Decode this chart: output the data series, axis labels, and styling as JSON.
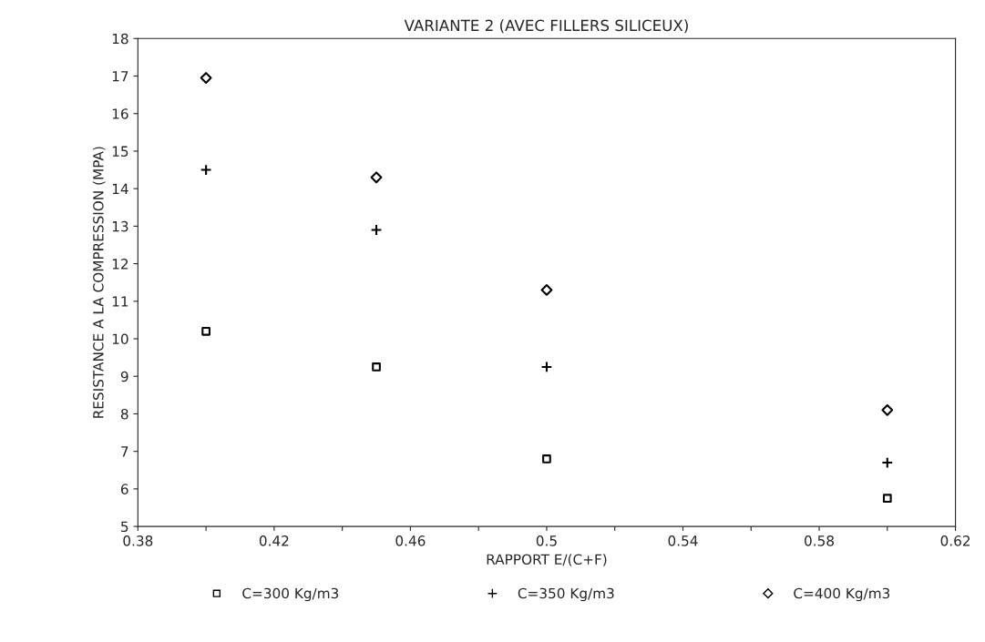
{
  "chart_data": {
    "type": "scatter",
    "title": "VARIANTE 2 (AVEC FILLERS SILICEUX)",
    "xlabel": "RAPPORT E/(C+F)",
    "ylabel": "RESISTANCE A LA COMPRESSION (MPA)",
    "x": [
      0.4,
      0.45,
      0.5,
      0.6
    ],
    "series": [
      {
        "name": "C=300 Kg/m3",
        "color": "#000000",
        "marker": "square",
        "values": [
          10.2,
          9.25,
          6.8,
          5.75
        ]
      },
      {
        "name": "C=350 Kg/m3",
        "color": "#000000",
        "marker": "cross",
        "values": [
          14.5,
          12.9,
          9.25,
          6.7
        ]
      },
      {
        "name": "C=400 Kg/m3",
        "color": "#000000",
        "marker": "diamond",
        "values": [
          16.95,
          14.3,
          11.3,
          8.1
        ]
      }
    ],
    "xlim": [
      0.38,
      0.62
    ],
    "xticks": [
      0.38,
      {
        "value": 0.4,
        "label": null
      },
      0.42,
      {
        "value": 0.44,
        "label": null
      },
      0.46,
      {
        "value": 0.48,
        "label": null
      },
      0.5,
      {
        "value": 0.52,
        "label": null
      },
      0.54,
      {
        "value": 0.56,
        "label": null
      },
      0.58,
      {
        "value": 0.6,
        "label": null
      },
      0.62
    ],
    "ylim": [
      5,
      18
    ],
    "yticks": [
      5,
      6,
      7,
      8,
      9,
      10,
      11,
      12,
      13,
      14,
      15,
      16,
      17,
      18
    ],
    "grid": false,
    "legend": "bottom"
  }
}
